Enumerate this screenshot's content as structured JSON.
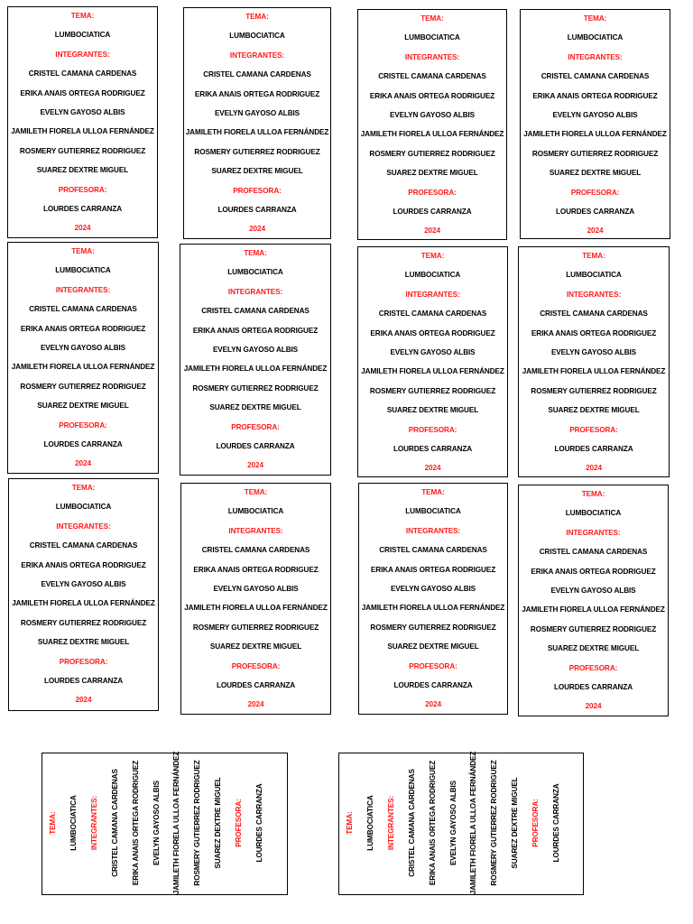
{
  "card": {
    "tema_label": "TEMA:",
    "tema": "LUMBOCIATICA",
    "integrantes_label": "INTEGRANTES:",
    "integrantes": [
      "CRISTEL CAMANA CARDENAS",
      "ERIKA ANAIS ORTEGA RODRIGUEZ",
      "EVELYN GAYOSO ALBIS",
      "JAMILETH FIORELA ULLOA FERNÁNDEZ",
      "ROSMERY GUTIERREZ RODRIGUEZ",
      "SUAREZ DEXTRE MIGUEL"
    ],
    "profesora_label": "PROFESORA:",
    "profesora": "LOURDES CARRANZA",
    "year": "2024"
  },
  "colors": {
    "label_red": "#ff1a1a",
    "text": "#000000",
    "border": "#000000"
  }
}
